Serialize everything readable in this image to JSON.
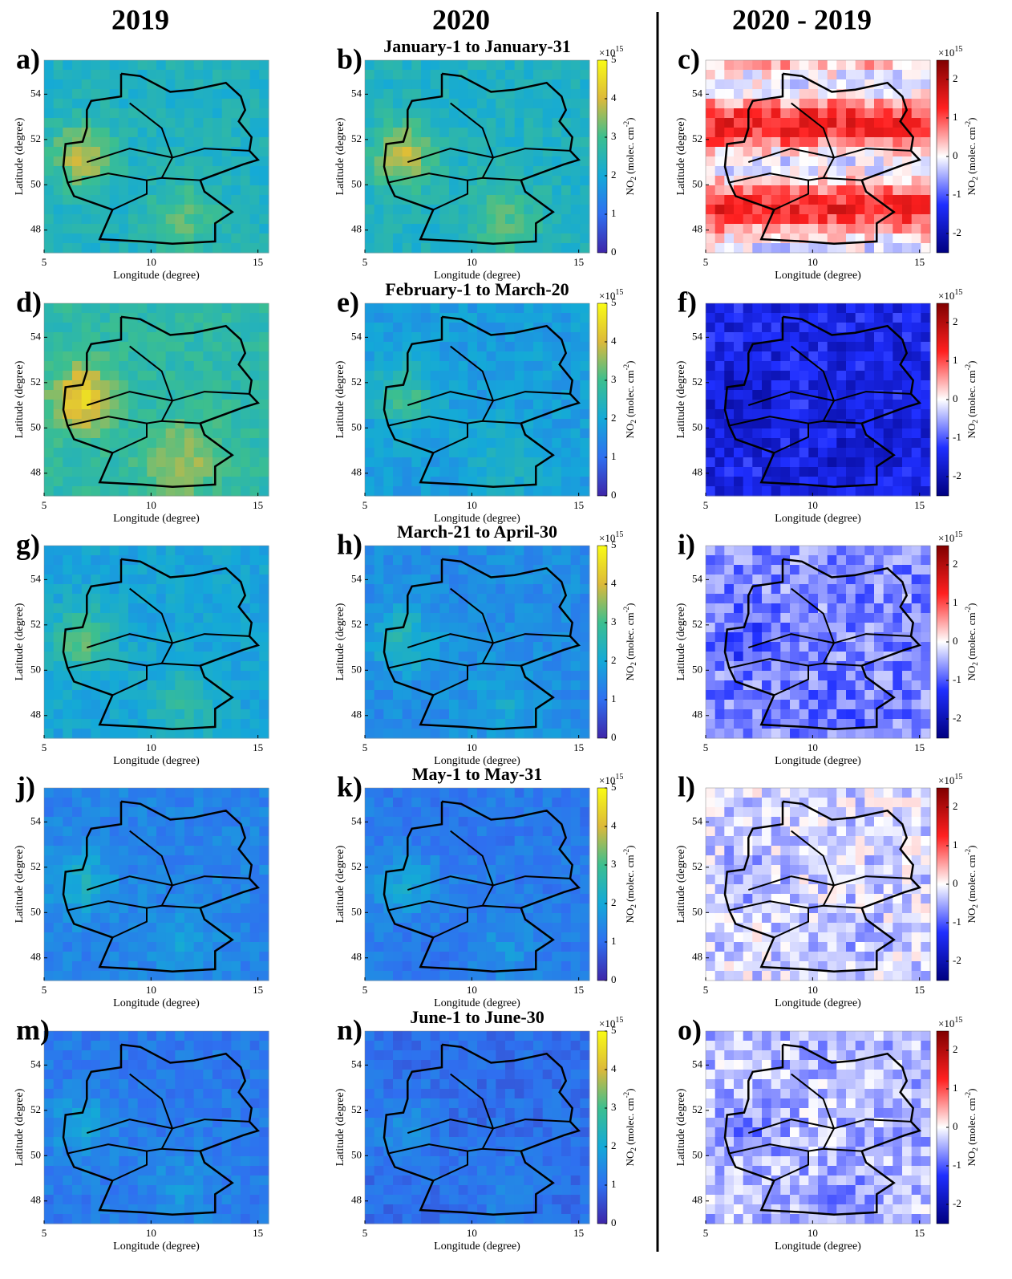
{
  "columns": [
    "2019",
    "2020",
    "2020 - 2019"
  ],
  "periods": [
    "January-1 to January-31",
    "February-1 to March-20",
    "March-21 to April-30",
    "May-1 to May-31",
    "June-1 to June-30"
  ],
  "panels": [
    "a)",
    "b)",
    "c)",
    "d)",
    "e)",
    "f)",
    "g)",
    "h)",
    "i)",
    "j)",
    "k)",
    "l)",
    "m)",
    "n)",
    "o)"
  ],
  "axes": {
    "x_label": "Longitude (degree)",
    "y_label": "Latitude (degree)",
    "xlim": [
      5,
      15.5
    ],
    "ylim": [
      47,
      55.5
    ],
    "xticks": [
      5,
      10,
      15
    ],
    "yticks": [
      48,
      50,
      52,
      54
    ]
  },
  "colorbar_label": [
    "NO",
    "2",
    " (molec. cm",
    "-2",
    ")"
  ],
  "colorbar_exponent": [
    "×10",
    "15"
  ],
  "colorbar_abs": {
    "lim": [
      0,
      5
    ],
    "ticks": [
      0,
      1,
      2,
      3,
      4,
      5
    ]
  },
  "colorbar_diff": {
    "lim": [
      -2.5,
      2.5
    ],
    "ticks": [
      -2,
      -1,
      0,
      1,
      2
    ]
  }
}
